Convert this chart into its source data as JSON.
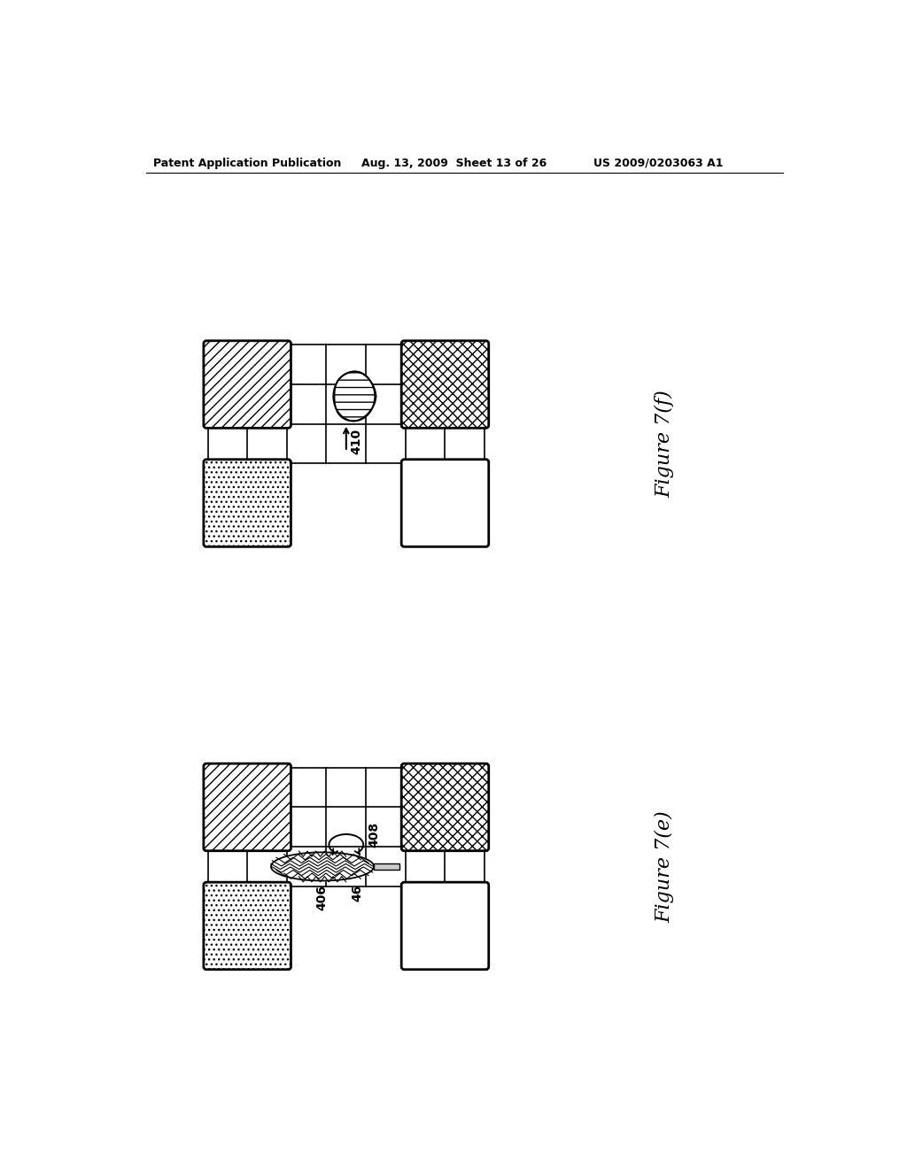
{
  "bg_color": "#ffffff",
  "header_left": "Patent Application Publication",
  "header_mid": "Aug. 13, 2009  Sheet 13 of 26",
  "header_right": "US 2009/0203063 A1",
  "fig_f_label": "Figure 7(f)",
  "fig_e_label": "Figure 7(e)",
  "label_410": "410",
  "label_408": "408",
  "label_406": "406",
  "label_46": "46",
  "cs": 0.58,
  "t_ox": 1.35,
  "t_oy": 7.3,
  "b_ox": 1.35,
  "b_oy": 1.1
}
